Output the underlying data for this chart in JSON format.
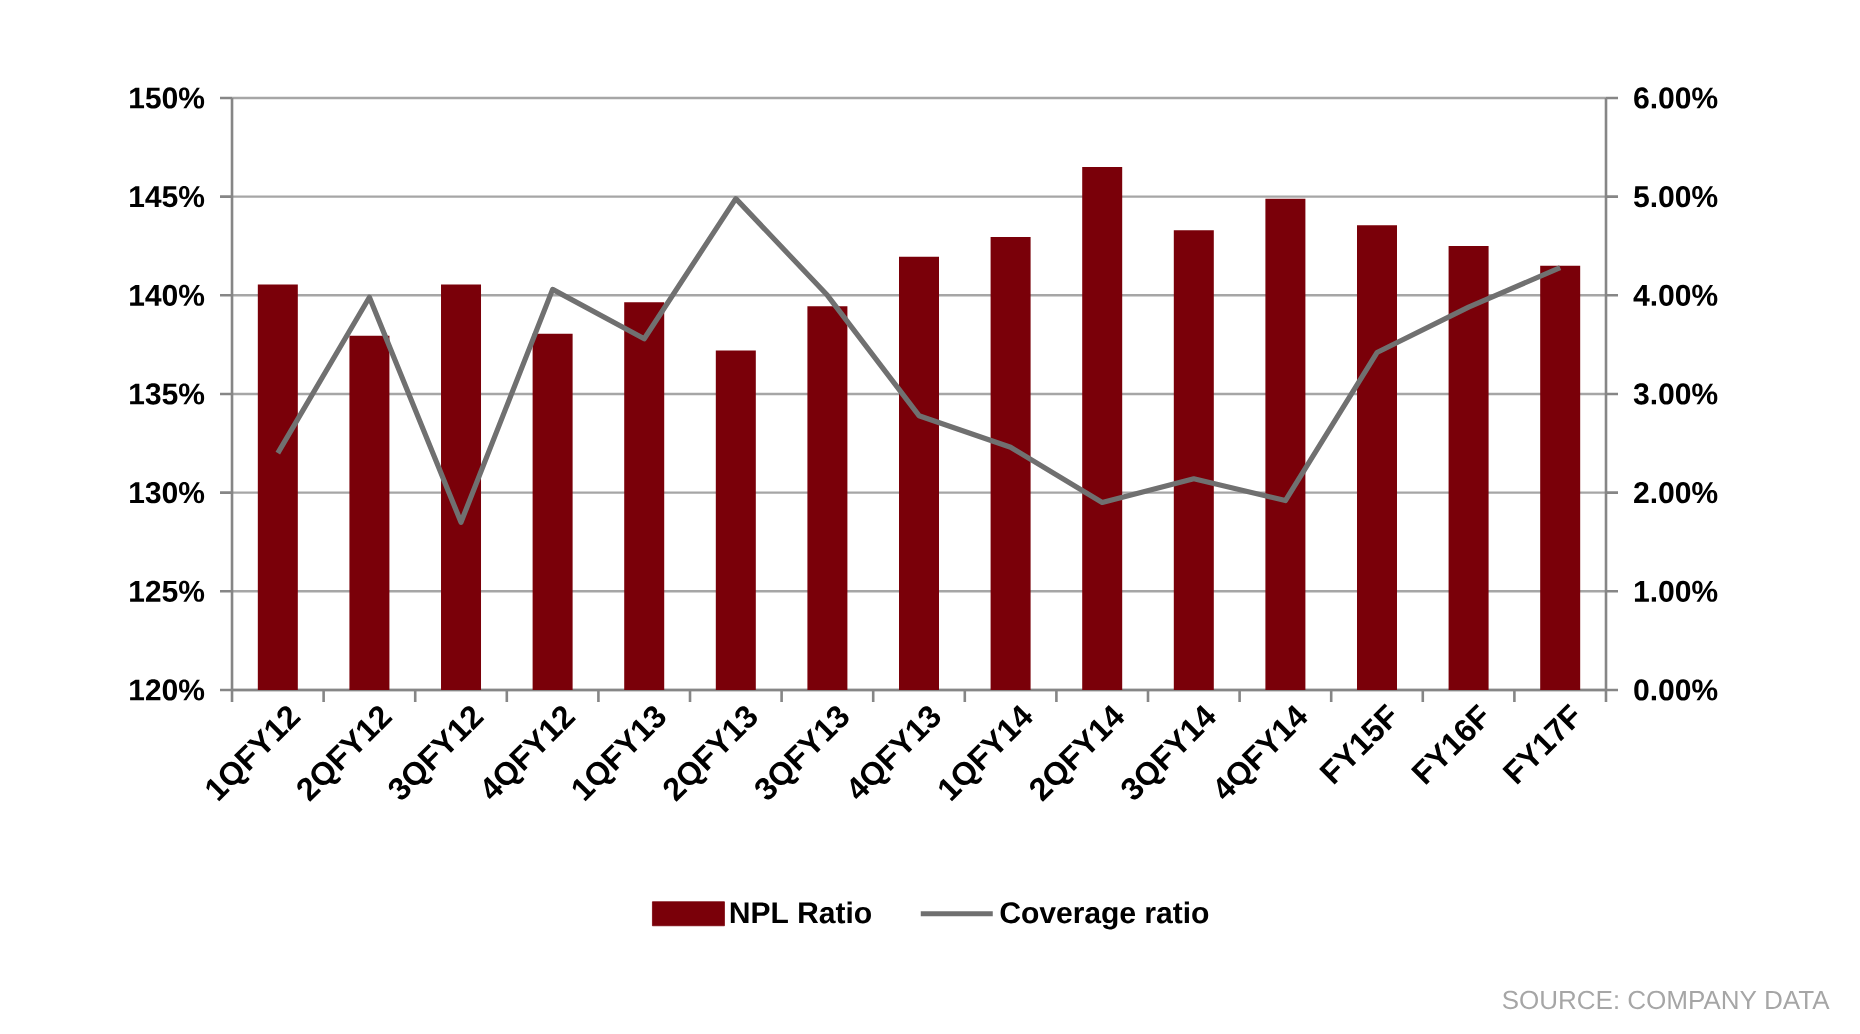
{
  "chart_data": {
    "type": "bar",
    "categories": [
      "1QFY12",
      "2QFY12",
      "3QFY12",
      "4QFY12",
      "1QFY13",
      "2QFY13",
      "3QFY13",
      "4QFY13",
      "1QFY14",
      "2QFY14",
      "3QFY14",
      "4QFY14",
      "FY15F",
      "FY16F",
      "FY17F"
    ],
    "series": [
      {
        "name": "NPL Ratio",
        "axis": "y2",
        "color": "#7a0009",
        "values": [
          4.11,
          3.59,
          4.11,
          3.61,
          3.93,
          3.44,
          3.89,
          4.39,
          4.59,
          5.3,
          4.66,
          4.98,
          4.71,
          4.5,
          4.3
        ]
      },
      {
        "name": "Coverage ratio",
        "type": "line",
        "color": "#707070",
        "values": [
          132.0,
          139.9,
          128.5,
          140.3,
          137.8,
          144.9,
          140.0,
          133.9,
          132.3,
          129.5,
          130.7,
          129.6,
          137.1,
          139.4,
          141.4
        ]
      }
    ],
    "ylim": [
      120,
      150
    ],
    "yticks": [
      {
        "value": 120,
        "label": "120%"
      },
      {
        "value": 125,
        "label": "125%"
      },
      {
        "value": 130,
        "label": "130%"
      },
      {
        "value": 135,
        "label": "135%"
      },
      {
        "value": 140,
        "label": "140%"
      },
      {
        "value": 145,
        "label": "145%"
      },
      {
        "value": 150,
        "label": "150%"
      }
    ],
    "y2lim": [
      0,
      6
    ],
    "y2ticks": [
      {
        "value": 0,
        "label": "0.00%"
      },
      {
        "value": 1,
        "label": "1.00%"
      },
      {
        "value": 2,
        "label": "2.00%"
      },
      {
        "value": 3,
        "label": "3.00%"
      },
      {
        "value": 4,
        "label": "4.00%"
      },
      {
        "value": 5,
        "label": "5.00%"
      },
      {
        "value": 6,
        "label": "6.00%"
      }
    ],
    "grid": "y",
    "legend": "bottom",
    "annotations": [
      "SOURCE: COMPANY DATA"
    ]
  }
}
